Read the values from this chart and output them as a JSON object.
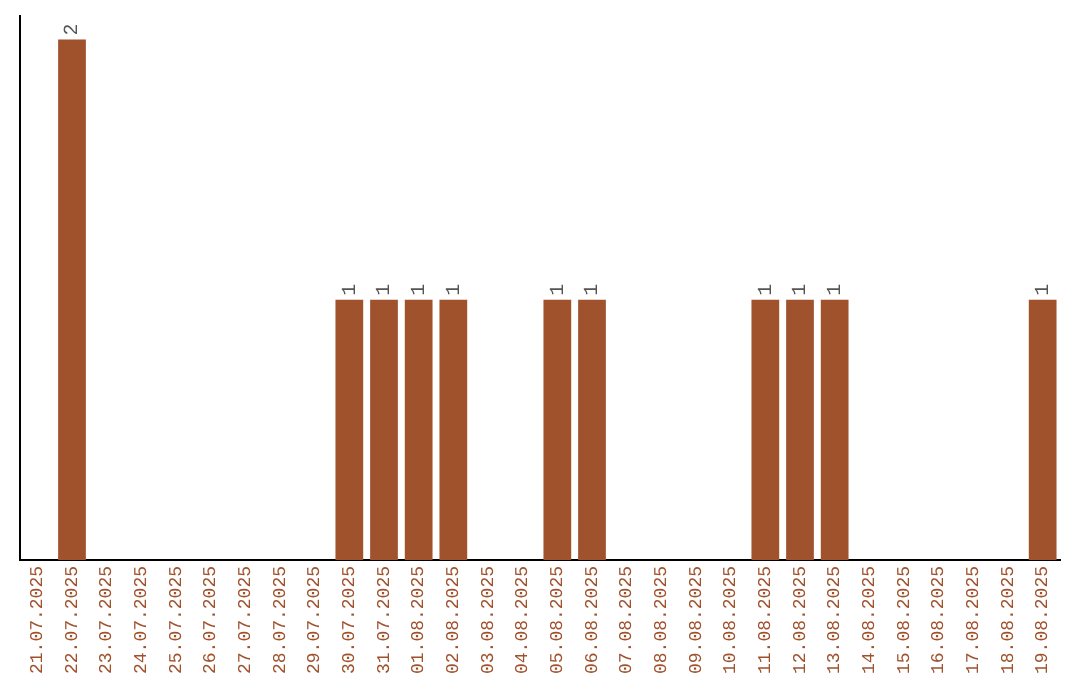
{
  "chart_data": {
    "type": "bar",
    "categories": [
      "21.07.2025",
      "22.07.2025",
      "23.07.2025",
      "24.07.2025",
      "25.07.2025",
      "26.07.2025",
      "27.07.2025",
      "28.07.2025",
      "29.07.2025",
      "30.07.2025",
      "31.07.2025",
      "01.08.2025",
      "02.08.2025",
      "03.08.2025",
      "04.08.2025",
      "05.08.2025",
      "06.08.2025",
      "07.08.2025",
      "08.08.2025",
      "09.08.2025",
      "10.08.2025",
      "11.08.2025",
      "12.08.2025",
      "13.08.2025",
      "14.08.2025",
      "15.08.2025",
      "16.08.2025",
      "17.08.2025",
      "18.08.2025",
      "19.08.2025"
    ],
    "values": [
      0,
      2,
      0,
      0,
      0,
      0,
      0,
      0,
      0,
      1,
      1,
      1,
      1,
      0,
      0,
      1,
      1,
      0,
      0,
      0,
      0,
      1,
      1,
      1,
      0,
      0,
      0,
      0,
      0,
      1
    ],
    "value_labels": [
      null,
      "2",
      null,
      null,
      null,
      null,
      null,
      null,
      null,
      "1",
      "1",
      "1",
      "1",
      null,
      null,
      "1",
      "1",
      null,
      null,
      null,
      null,
      "1",
      "1",
      "1",
      null,
      null,
      null,
      null,
      null,
      "1"
    ],
    "color": "#a0522d",
    "grid": false,
    "legend": false
  }
}
